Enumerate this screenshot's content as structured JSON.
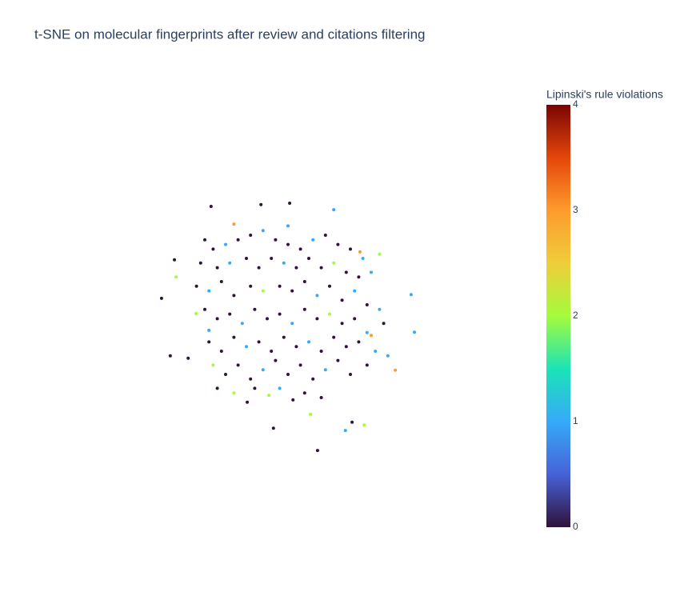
{
  "chart_data": {
    "type": "scatter",
    "title": "t-SNE on molecular fingerprints after review and citations filtering",
    "x": [
      -18.5,
      -6.5,
      0.4,
      11,
      -13,
      -27.3,
      -26.9,
      -30.4,
      -28.3,
      -22.1,
      29.6,
      30.4,
      25.8,
      20,
      15.4,
      18.3,
      13.8,
      7.1,
      -3.5,
      1.2,
      5.4,
      -9.8,
      -4.6,
      22,
      17.3,
      -20,
      -18,
      -15,
      -12,
      -9,
      -6,
      -3,
      0,
      3,
      6,
      9,
      12,
      15,
      18,
      -21,
      -17,
      -14,
      -10,
      -7,
      -4,
      -1,
      2,
      5,
      8,
      11,
      14,
      17,
      20,
      -22,
      -19,
      -16,
      -13,
      -9,
      -6,
      -2,
      1,
      4,
      7,
      10,
      13,
      16,
      19,
      22,
      -20,
      -17,
      -14,
      -11,
      -8,
      -5,
      -2,
      1,
      4,
      7,
      10,
      13,
      16,
      19,
      23,
      -19,
      -16,
      -13,
      -10,
      -7,
      -4,
      -1,
      2,
      5,
      8,
      11,
      14,
      17,
      21,
      -18,
      -15,
      -12,
      -9,
      -6,
      -3,
      0,
      3,
      6,
      9,
      12,
      15,
      19,
      -17,
      -13,
      -8,
      -2,
      4,
      8,
      -19,
      24,
      -24,
      0
    ],
    "y": [
      26.2,
      26.6,
      26.9,
      25.5,
      22.4,
      14.7,
      11,
      6.4,
      -6,
      3.1,
      7.2,
      -0.9,
      -9.1,
      -1.6,
      -20.3,
      -20.9,
      -22.1,
      -26.4,
      -21.6,
      -15.5,
      -18.6,
      -16,
      -14.5,
      15.9,
      16.4,
      19,
      17,
      18,
      19,
      20,
      21,
      19,
      18,
      17,
      19,
      20,
      18,
      17,
      15,
      14,
      13,
      14,
      15,
      13,
      15,
      14,
      13,
      15,
      13,
      14,
      12,
      11,
      12,
      9,
      8,
      10,
      7,
      9,
      8,
      9,
      8,
      10,
      7,
      9,
      6,
      8,
      5,
      4,
      4,
      2,
      3,
      1,
      4,
      2,
      3,
      1,
      4,
      2,
      3,
      1,
      2,
      -1,
      1,
      -3,
      -5,
      -2,
      -4,
      -3,
      -5,
      -2,
      -4,
      -3,
      -5,
      -2,
      -4,
      -3,
      -5,
      -8,
      -10,
      -8,
      -11,
      -9,
      -7,
      -10,
      -8,
      -11,
      -9,
      -7,
      -10,
      -8,
      -13,
      -14,
      -13,
      -13,
      -14,
      -15,
      -0.5,
      -6,
      -6.5,
      22
    ],
    "color_values": [
      0,
      0,
      0,
      1,
      3,
      0,
      2,
      0,
      0,
      2,
      1,
      1,
      3,
      3,
      0,
      2,
      1,
      0,
      0,
      0,
      2,
      0,
      2,
      2,
      3,
      0,
      0,
      1,
      0,
      0,
      1,
      0,
      0,
      0,
      1,
      0,
      0,
      0,
      1,
      0,
      0,
      1,
      0,
      0,
      0,
      1,
      0,
      0,
      0,
      2,
      0,
      0,
      1,
      0,
      1,
      0,
      0,
      0,
      2,
      0,
      0,
      0,
      1,
      0,
      0,
      1,
      0,
      1,
      0,
      0,
      0,
      1,
      0,
      0,
      0,
      1,
      0,
      0,
      2,
      0,
      0,
      1,
      0,
      0,
      0,
      0,
      1,
      0,
      0,
      0,
      0,
      1,
      0,
      0,
      0,
      0,
      1,
      2,
      0,
      0,
      0,
      1,
      0,
      0,
      0,
      0,
      1,
      0,
      0,
      0,
      0,
      2,
      0,
      1,
      0,
      0,
      1,
      1,
      0,
      1
    ],
    "xlim": [
      -50,
      50
    ],
    "ylim": [
      -50,
      50
    ],
    "colorbar_title": "Lipinski's rule violations",
    "clim": [
      0,
      4
    ],
    "cticks": [
      0,
      1,
      2,
      3,
      4
    ],
    "colorscale": [
      [
        0,
        "#30123b"
      ],
      [
        0.125,
        "#4662d7"
      ],
      [
        0.25,
        "#36aaf9"
      ],
      [
        0.375,
        "#1ae4b6"
      ],
      [
        0.5,
        "#a4fc3c"
      ],
      [
        0.625,
        "#efcd3a"
      ],
      [
        0.75,
        "#fe9b2d"
      ],
      [
        0.875,
        "#e4460a"
      ],
      [
        1,
        "#7a0403"
      ]
    ]
  }
}
